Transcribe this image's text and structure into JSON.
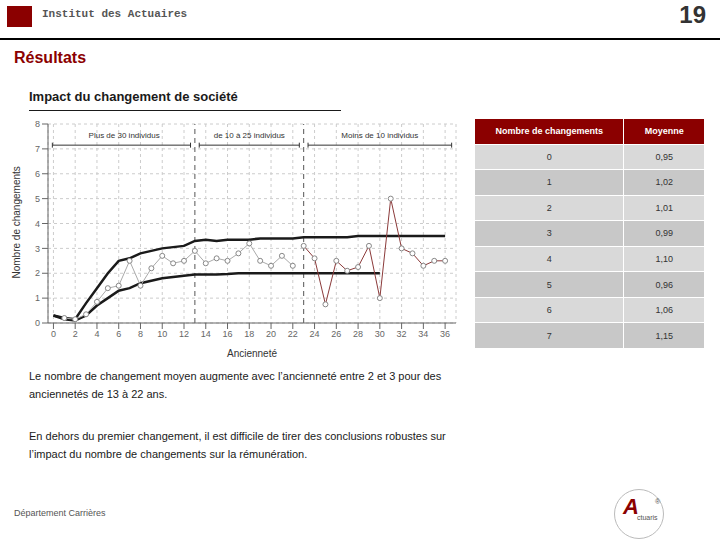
{
  "page": {
    "header_text": "Institut des Actuaires",
    "page_number": "19",
    "section_title": "Résultats",
    "paragraphs": [
      "Le nombre de changement moyen augmente avec l’ancienneté entre 2 et 3 pour des\nanciennetés de 13 à 22 ans.",
      "En dehors du premier changement, il est difficile de tirer des conclusions robustes sur\nl’impact du nombre de changements sur la rémunération."
    ],
    "footer_text": "Département Carrières",
    "logo": [
      "A",
      "ctuaris",
      "®"
    ]
  },
  "chart_data": {
    "type": "line",
    "title": "Impact du changement de société",
    "xlabel": "Ancienneté",
    "ylabel": "Nombre de changements",
    "xlim": [
      -0.5,
      37
    ],
    "xticks": [
      0,
      2,
      4,
      6,
      8,
      10,
      12,
      14,
      16,
      18,
      20,
      22,
      24,
      26,
      28,
      30,
      32,
      34,
      36
    ],
    "ylim": [
      0,
      8
    ],
    "yticks": [
      0,
      1,
      2,
      3,
      4,
      5,
      6,
      7,
      8
    ],
    "grid": true,
    "annotations": [
      {
        "x": 13,
        "line_style": "dashed"
      },
      {
        "x": 23,
        "line_style": "dashed"
      },
      {
        "text": "Plus de 30 individus",
        "x": 6.5,
        "y": 7.55
      },
      {
        "text": "de 10 à 25 individus",
        "x": 18,
        "y": 7.55
      },
      {
        "text": "Moins de 10 individus",
        "x": 30,
        "y": 7.55
      }
    ],
    "series": [
      {
        "type": "line",
        "color": "#1a1a1a",
        "x": [
          0,
          1,
          2,
          3,
          4,
          5,
          6,
          7,
          8,
          9,
          10,
          11,
          12,
          13,
          14,
          15,
          16,
          17,
          18,
          19,
          20,
          21,
          22,
          23,
          24,
          25,
          26,
          27,
          28,
          29,
          30,
          31,
          32,
          33,
          34,
          35,
          36
        ],
        "values": [
          0.3,
          0.2,
          0.15,
          0.8,
          1.4,
          2.0,
          2.5,
          2.6,
          2.8,
          2.9,
          3.0,
          3.05,
          3.1,
          3.3,
          3.35,
          3.3,
          3.35,
          3.35,
          3.35,
          3.4,
          3.4,
          3.4,
          3.4,
          3.45,
          3.45,
          3.45,
          3.45,
          3.45,
          3.5,
          3.5,
          3.5,
          3.5,
          3.5,
          3.5,
          3.5,
          3.5,
          3.5
        ]
      },
      {
        "type": "line",
        "color": "#1a1a1a",
        "x": [
          0,
          1,
          2,
          3,
          4,
          5,
          6,
          7,
          8,
          9,
          10,
          11,
          12,
          13,
          14,
          15,
          16,
          17,
          18,
          19,
          20,
          21,
          22,
          23,
          24,
          25,
          26,
          27,
          28,
          29,
          30
        ],
        "values": [
          0.3,
          0.15,
          0.1,
          0.3,
          0.7,
          1.0,
          1.3,
          1.4,
          1.6,
          1.7,
          1.8,
          1.85,
          1.9,
          1.95,
          1.95,
          1.95,
          1.97,
          2.0,
          2.0,
          2.0,
          2.0,
          2.0,
          2.0,
          2.0,
          2.0,
          2.0,
          2.0,
          2.0,
          2.0,
          2.0,
          2.0
        ]
      },
      {
        "type": "line",
        "marker": "o",
        "color": "#aaaaaa",
        "x": [
          1,
          2,
          3,
          4,
          5,
          6,
          7,
          8,
          9,
          10,
          11,
          12,
          13,
          14,
          15,
          16,
          17,
          18,
          19,
          20,
          21,
          22
        ],
        "values": [
          0.2,
          0.15,
          0.35,
          0.85,
          1.4,
          1.5,
          2.5,
          1.5,
          2.2,
          2.7,
          2.4,
          2.5,
          2.9,
          2.4,
          2.6,
          2.5,
          2.8,
          3.2,
          2.5,
          2.3,
          2.7,
          2.3
        ]
      },
      {
        "type": "line",
        "marker": "o",
        "color": "#8b3a3a",
        "x": [
          23,
          24,
          25,
          26,
          27,
          28,
          29,
          30,
          31,
          32,
          33,
          34,
          35,
          36
        ],
        "values": [
          3.1,
          2.6,
          0.75,
          2.5,
          2.1,
          2.25,
          3.1,
          1.0,
          5.0,
          3.0,
          2.8,
          2.3,
          2.5,
          2.5
        ]
      }
    ]
  },
  "table": {
    "header_color": "#8b0000",
    "rows": [
      [
        "Nombre de changements",
        "Moyenne"
      ],
      [
        "0",
        "0,95"
      ],
      [
        "1",
        "1,02"
      ],
      [
        "2",
        "1,01"
      ],
      [
        "3",
        "0,99"
      ],
      [
        "4",
        "1,10"
      ],
      [
        "5",
        "0,96"
      ],
      [
        "6",
        "1,06"
      ],
      [
        "7",
        "1,15"
      ]
    ]
  }
}
